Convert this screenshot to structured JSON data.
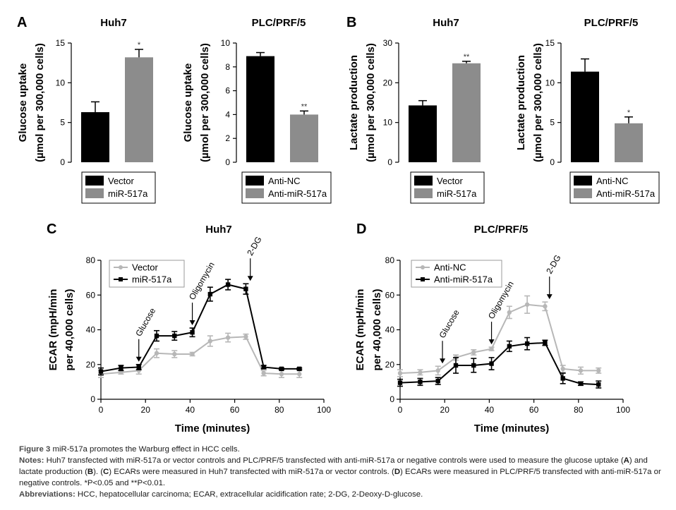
{
  "colors": {
    "black": "#000000",
    "grey": "#8c8c8c",
    "lightgrey": "#b7b7b7"
  },
  "panels": {
    "A": {
      "letter": "A"
    },
    "B": {
      "letter": "B"
    },
    "C": {
      "letter": "C"
    },
    "D": {
      "letter": "D"
    }
  },
  "chart_data": [
    {
      "id": "A1",
      "type": "bar",
      "title": "Huh7",
      "ylabel_lines": [
        "Glucose uptake",
        "(µmol per 300,000 cells)"
      ],
      "categories": [
        "Vector",
        "miR-517a"
      ],
      "values": [
        6.3,
        13.2
      ],
      "errors": [
        1.3,
        1.0
      ],
      "significance": [
        "",
        "*"
      ],
      "bar_colors": [
        "#000000",
        "#8c8c8c"
      ],
      "ylim": [
        0,
        15
      ],
      "yticks": [
        0,
        5,
        10,
        15
      ],
      "legend": [
        "Vector",
        "miR-517a"
      ]
    },
    {
      "id": "A2",
      "type": "bar",
      "title": "PLC/PRF/5",
      "ylabel_lines": [
        "Glucose uptake",
        "(µmol per 300,000 cells)"
      ],
      "categories": [
        "Anti-NC",
        "Anti-miR-517a"
      ],
      "values": [
        8.9,
        4.0
      ],
      "errors": [
        0.3,
        0.3
      ],
      "significance": [
        "",
        "**"
      ],
      "bar_colors": [
        "#000000",
        "#8c8c8c"
      ],
      "ylim": [
        0,
        10
      ],
      "yticks": [
        0,
        2,
        4,
        6,
        8,
        10
      ],
      "legend": [
        "Anti-NC",
        "Anti-miR-517a"
      ]
    },
    {
      "id": "B1",
      "type": "bar",
      "title": "Huh7",
      "ylabel_lines": [
        "Lactate production",
        "(µmol per 300,000 cells)"
      ],
      "categories": [
        "Vector",
        "miR-517a"
      ],
      "values": [
        14.3,
        24.9
      ],
      "errors": [
        1.2,
        0.5
      ],
      "significance": [
        "",
        "**"
      ],
      "bar_colors": [
        "#000000",
        "#8c8c8c"
      ],
      "ylim": [
        0,
        30
      ],
      "yticks": [
        0,
        10,
        20,
        30
      ],
      "legend": [
        "Vector",
        "miR-517a"
      ]
    },
    {
      "id": "B2",
      "type": "bar",
      "title": "PLC/PRF/5",
      "ylabel_lines": [
        "Lactate production",
        "(µmol per 300,000 cells)"
      ],
      "categories": [
        "Anti-NC",
        "Anti-miR-517a"
      ],
      "values": [
        11.4,
        4.9
      ],
      "errors": [
        1.6,
        0.8
      ],
      "significance": [
        "",
        "*"
      ],
      "bar_colors": [
        "#000000",
        "#8c8c8c"
      ],
      "ylim": [
        0,
        15
      ],
      "yticks": [
        0,
        5,
        10,
        15
      ],
      "legend": [
        "Anti-NC",
        "Anti-miR-517a"
      ]
    },
    {
      "id": "C",
      "type": "line",
      "title": "Huh7",
      "xlabel": "Time (minutes)",
      "ylabel_lines": [
        "ECAR (mpH/min",
        "per 40,000 cells)"
      ],
      "xlim": [
        0,
        100
      ],
      "xticks": [
        0,
        20,
        40,
        60,
        80,
        100
      ],
      "ylim": [
        0,
        80
      ],
      "yticks": [
        0,
        20,
        40,
        60,
        80
      ],
      "x": [
        0,
        9,
        17,
        25,
        33,
        41,
        49,
        57,
        65,
        73,
        81,
        89
      ],
      "series": [
        {
          "name": "Vector",
          "color": "#b7b7b7",
          "values": [
            14.5,
            15.5,
            16.5,
            26.5,
            26,
            26,
            33.5,
            35.5,
            36,
            15,
            14.5,
            14.5
          ],
          "errors": [
            2,
            1,
            2,
            2.5,
            2,
            1,
            3,
            2.5,
            1.5,
            1.5,
            2,
            2
          ]
        },
        {
          "name": "miR-517a",
          "color": "#000000",
          "values": [
            16,
            18,
            18.5,
            36.5,
            36.5,
            38.5,
            60.5,
            66,
            63.5,
            18.5,
            17.5,
            17.5
          ],
          "errors": [
            2,
            1.5,
            1.5,
            3,
            2.5,
            2.5,
            4,
            3,
            3,
            1,
            0.5,
            0.5
          ]
        }
      ],
      "annotations": [
        {
          "text": "Glucose",
          "x": 17
        },
        {
          "text": "Oligomycin",
          "x": 41
        },
        {
          "text": "2-DG",
          "x": 67
        }
      ]
    },
    {
      "id": "D",
      "type": "line",
      "title": "PLC/PRF/5",
      "xlabel": "Time (minutes)",
      "ylabel_lines": [
        "ECAR (mpH/min",
        "per 40,000 cells)"
      ],
      "xlim": [
        0,
        100
      ],
      "xticks": [
        0,
        20,
        40,
        60,
        80,
        100
      ],
      "ylim": [
        0,
        80
      ],
      "yticks": [
        0,
        20,
        40,
        60,
        80
      ],
      "x": [
        0,
        9,
        17,
        25,
        33,
        41,
        49,
        57,
        65,
        73,
        81,
        89
      ],
      "series": [
        {
          "name": "Anti-NC",
          "color": "#b7b7b7",
          "values": [
            15,
            15.5,
            16.5,
            24,
            27,
            29,
            50,
            54.5,
            53.5,
            17.5,
            16.5,
            16.5
          ],
          "errors": [
            2,
            1.5,
            2.5,
            1.5,
            1.5,
            1,
            3.5,
            5,
            2.5,
            2,
            2,
            1.5
          ]
        },
        {
          "name": "Anti-miR-517a",
          "color": "#000000",
          "values": [
            9.5,
            10,
            10.5,
            19.5,
            19.5,
            20.5,
            30.5,
            32,
            32.5,
            12,
            9,
            8.5
          ],
          "errors": [
            2,
            2,
            2,
            4.5,
            4,
            3.5,
            3,
            3.5,
            1.5,
            3,
            1,
            2
          ]
        }
      ],
      "annotations": [
        {
          "text": "Glucose",
          "x": 19
        },
        {
          "text": "Oligomycin",
          "x": 41
        },
        {
          "text": "2-DG",
          "x": 67
        }
      ]
    }
  ],
  "caption": {
    "figure_label": "Figure 3",
    "figure_title": "miR-517a promotes the Warburg effect in HCC cells.",
    "notes_label": "Notes:",
    "notes_part1": "Huh7 transfected with miR-517a or vector controls and PLC/PRF/5 transfected with anti-miR-517a or negative controls were used to measure the glucose uptake (",
    "notes_A": "A",
    "notes_part2": ") and lactate production (",
    "notes_B": "B",
    "notes_part3": "). (",
    "notes_C": "C",
    "notes_part4": ") ECARs were measured in Huh7 transfected with miR-517a or vector controls. (",
    "notes_D": "D",
    "notes_part5": ") ECARs were measured in PLC/PRF/5 transfected with anti-miR-517a or negative controls. *P<0.05 and **P<0.01.",
    "abbrev_label": "Abbreviations:",
    "abbrev_text": "HCC, hepatocellular carcinoma; ECAR, extracellular acidification rate; 2-DG, 2-Deoxy-D-glucose."
  }
}
